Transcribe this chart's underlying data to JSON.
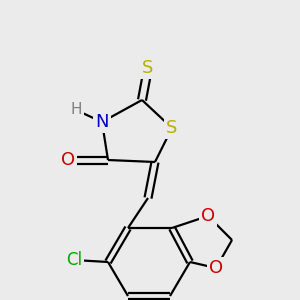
{
  "background_color": "#ebebeb",
  "bg": "#ebebeb",
  "atoms": {
    "S_thione": {
      "color": "#b8b000"
    },
    "S_ring": {
      "color": "#b8b000"
    },
    "N": {
      "color": "#0000cc"
    },
    "H": {
      "color": "#808080"
    },
    "O": {
      "color": "#cc0000"
    },
    "O2": {
      "color": "#cc0000"
    },
    "O3": {
      "color": "#cc0000"
    },
    "Cl": {
      "color": "#00aa00"
    }
  }
}
